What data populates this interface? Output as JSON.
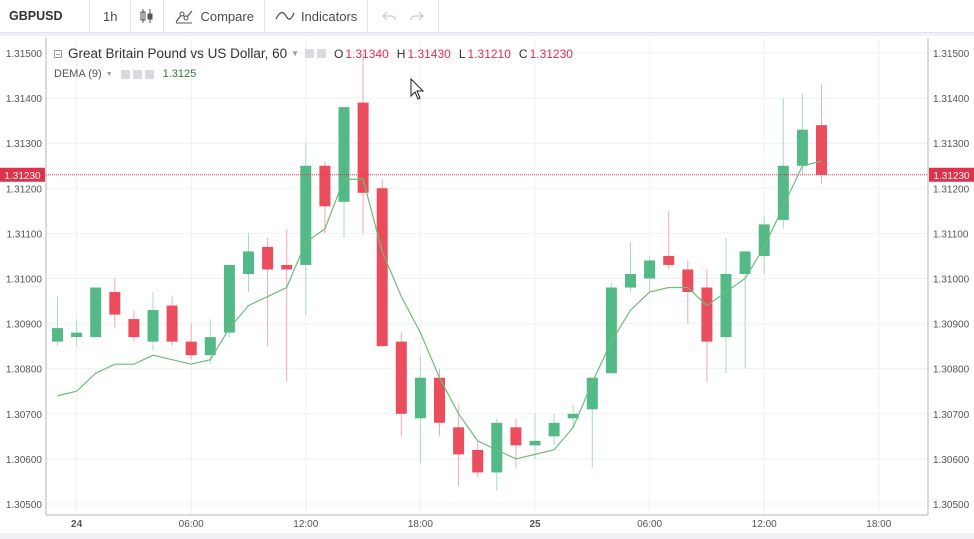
{
  "toolbar": {
    "symbol": "GBPUSD",
    "interval": "1h",
    "compare_label": "Compare",
    "indicators_label": "Indicators"
  },
  "legend": {
    "title": "Great Britain Pound vs US Dollar, 60",
    "open_label": "O",
    "open": "1.31340",
    "high_label": "H",
    "high": "1.31430",
    "low_label": "L",
    "low": "1.31210",
    "close_label": "C",
    "close": "1.31230"
  },
  "indicator": {
    "name": "DEMA (9)",
    "value": "1.3125",
    "color": "#6dbd7c"
  },
  "colors": {
    "up": "#53b987",
    "down": "#eb4d5c",
    "price_line": "#e0314b",
    "grid": "#eef0f3"
  },
  "chart_data": {
    "type": "candlestick",
    "title": "Great Britain Pound vs US Dollar, 60",
    "ylim": [
      1.3048,
      1.3152
    ],
    "yticks": [
      1.305,
      1.306,
      1.307,
      1.308,
      1.309,
      1.31,
      1.311,
      1.312,
      1.313,
      1.314,
      1.315
    ],
    "ytick_labels": [
      "1.30500",
      "1.30600",
      "1.30700",
      "1.30800",
      "1.30900",
      "1.31000",
      "1.31100",
      "1.31200",
      "1.31300",
      "1.31400",
      "1.31500"
    ],
    "xtick_labels": [
      "24",
      "06:00",
      "12:00",
      "18:00",
      "25",
      "06:00",
      "12:00",
      "18:00"
    ],
    "xtick_index": [
      1,
      7,
      13,
      19,
      25,
      31,
      37,
      43
    ],
    "last_price": 1.3123,
    "last_price_label": "1.31230",
    "candles": [
      {
        "o": 1.3086,
        "h": 1.3096,
        "l": 1.3085,
        "c": 1.3089
      },
      {
        "o": 1.3087,
        "h": 1.3091,
        "l": 1.3085,
        "c": 1.3088
      },
      {
        "o": 1.3087,
        "h": 1.3098,
        "l": 1.3087,
        "c": 1.3098
      },
      {
        "o": 1.3097,
        "h": 1.31,
        "l": 1.3089,
        "c": 1.3092
      },
      {
        "o": 1.3091,
        "h": 1.3093,
        "l": 1.3086,
        "c": 1.3087
      },
      {
        "o": 1.3086,
        "h": 1.3097,
        "l": 1.3084,
        "c": 1.3093
      },
      {
        "o": 1.3094,
        "h": 1.3096,
        "l": 1.3085,
        "c": 1.3086
      },
      {
        "o": 1.3086,
        "h": 1.309,
        "l": 1.3082,
        "c": 1.3083
      },
      {
        "o": 1.3083,
        "h": 1.3091,
        "l": 1.3081,
        "c": 1.3087
      },
      {
        "o": 1.3088,
        "h": 1.3103,
        "l": 1.3087,
        "c": 1.3103
      },
      {
        "o": 1.3101,
        "h": 1.311,
        "l": 1.3097,
        "c": 1.3106
      },
      {
        "o": 1.3107,
        "h": 1.3109,
        "l": 1.3085,
        "c": 1.3102
      },
      {
        "o": 1.3103,
        "h": 1.3111,
        "l": 1.3077,
        "c": 1.3102
      },
      {
        "o": 1.3103,
        "h": 1.313,
        "l": 1.3092,
        "c": 1.3125
      },
      {
        "o": 1.3125,
        "h": 1.3126,
        "l": 1.311,
        "c": 1.3116
      },
      {
        "o": 1.3117,
        "h": 1.3138,
        "l": 1.3109,
        "c": 1.3138
      },
      {
        "o": 1.3139,
        "h": 1.315,
        "l": 1.311,
        "c": 1.3119
      },
      {
        "o": 1.312,
        "h": 1.3122,
        "l": 1.3085,
        "c": 1.3085
      },
      {
        "o": 1.3086,
        "h": 1.3088,
        "l": 1.3065,
        "c": 1.307
      },
      {
        "o": 1.3069,
        "h": 1.3083,
        "l": 1.3059,
        "c": 1.3078
      },
      {
        "o": 1.3078,
        "h": 1.308,
        "l": 1.3065,
        "c": 1.3068
      },
      {
        "o": 1.3067,
        "h": 1.3072,
        "l": 1.3054,
        "c": 1.3061
      },
      {
        "o": 1.3062,
        "h": 1.3064,
        "l": 1.3056,
        "c": 1.3057
      },
      {
        "o": 1.3057,
        "h": 1.3069,
        "l": 1.3053,
        "c": 1.3068
      },
      {
        "o": 1.3067,
        "h": 1.3069,
        "l": 1.3058,
        "c": 1.3063
      },
      {
        "o": 1.3063,
        "h": 1.307,
        "l": 1.306,
        "c": 1.3064
      },
      {
        "o": 1.3065,
        "h": 1.307,
        "l": 1.3063,
        "c": 1.3068
      },
      {
        "o": 1.3069,
        "h": 1.3072,
        "l": 1.3067,
        "c": 1.307
      },
      {
        "o": 1.3071,
        "h": 1.3078,
        "l": 1.3058,
        "c": 1.3078
      },
      {
        "o": 1.3079,
        "h": 1.3099,
        "l": 1.3079,
        "c": 1.3098
      },
      {
        "o": 1.3098,
        "h": 1.3108,
        "l": 1.3097,
        "c": 1.3101
      },
      {
        "o": 1.31,
        "h": 1.3105,
        "l": 1.3097,
        "c": 1.3104
      },
      {
        "o": 1.3105,
        "h": 1.3115,
        "l": 1.3102,
        "c": 1.3103
      },
      {
        "o": 1.3102,
        "h": 1.3104,
        "l": 1.309,
        "c": 1.3097
      },
      {
        "o": 1.3098,
        "h": 1.3102,
        "l": 1.3077,
        "c": 1.3086
      },
      {
        "o": 1.3087,
        "h": 1.3109,
        "l": 1.3079,
        "c": 1.3101
      },
      {
        "o": 1.3101,
        "h": 1.3106,
        "l": 1.308,
        "c": 1.3106
      },
      {
        "o": 1.3105,
        "h": 1.3114,
        "l": 1.3101,
        "c": 1.3112
      },
      {
        "o": 1.3113,
        "h": 1.314,
        "l": 1.3111,
        "c": 1.3125
      },
      {
        "o": 1.3125,
        "h": 1.3141,
        "l": 1.3123,
        "c": 1.3133
      },
      {
        "o": 1.3134,
        "h": 1.3143,
        "l": 1.3121,
        "c": 1.3123
      }
    ],
    "dema": [
      1.3074,
      1.3075,
      1.3079,
      1.3081,
      1.3081,
      1.3083,
      1.3082,
      1.3081,
      1.3082,
      1.3089,
      1.3094,
      1.3096,
      1.3098,
      1.3108,
      1.3111,
      1.3122,
      1.3122,
      1.3106,
      1.3096,
      1.3088,
      1.3078,
      1.307,
      1.3064,
      1.3062,
      1.306,
      1.3061,
      1.3062,
      1.3067,
      1.3077,
      1.3086,
      1.3093,
      1.3097,
      1.3098,
      1.3098,
      1.3094,
      1.3097,
      1.31,
      1.3107,
      1.3116,
      1.3125,
      1.3126
    ]
  }
}
